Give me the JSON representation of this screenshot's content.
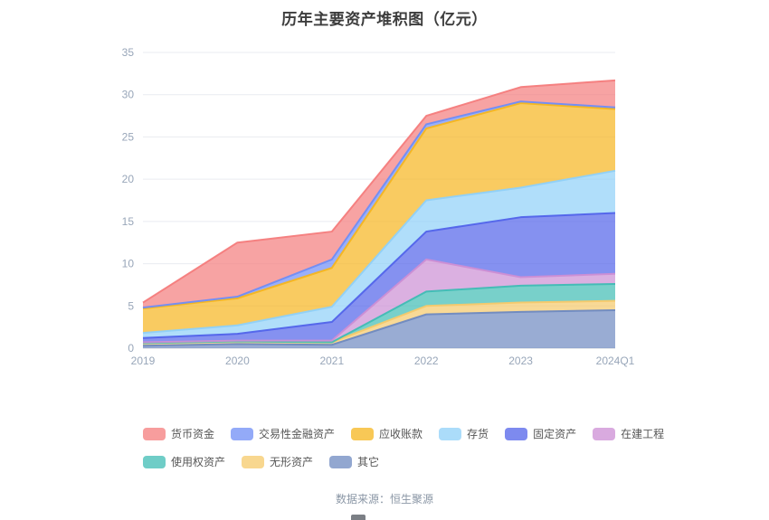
{
  "title": "历年主要资产堆积图（亿元）",
  "footer": {
    "source": "数据来源：恒生聚源"
  },
  "chart_data": {
    "type": "area",
    "stacked": true,
    "title": "历年主要资产堆积图（亿元）",
    "categories": [
      "2019",
      "2020",
      "2021",
      "2022",
      "2023",
      "2024Q1"
    ],
    "xlabel": "",
    "ylabel": "",
    "ylim": [
      0,
      35
    ],
    "yticks": [
      0,
      5,
      10,
      15,
      20,
      25,
      30,
      35
    ],
    "grid": true,
    "legend_position": "bottom",
    "stack_order": "last-series-at-bottom",
    "series": [
      {
        "name": "货币资金",
        "color": "#f47c7c",
        "values": [
          0.6,
          6.4,
          3.3,
          1.0,
          1.7,
          3.2
        ]
      },
      {
        "name": "交易性金融资产",
        "color": "#6f8df6",
        "values": [
          0.1,
          0.2,
          1.0,
          0.5,
          0.2,
          0.2
        ]
      },
      {
        "name": "应收账款",
        "color": "#f6b51e",
        "values": [
          2.9,
          3.2,
          4.6,
          8.5,
          10.0,
          7.3
        ]
      },
      {
        "name": "存货",
        "color": "#8fd0f8",
        "values": [
          0.6,
          1.0,
          1.8,
          3.7,
          3.5,
          5.0
        ]
      },
      {
        "name": "固定资产",
        "color": "#5163ea",
        "values": [
          0.5,
          0.8,
          2.2,
          3.3,
          7.1,
          7.2
        ]
      },
      {
        "name": "在建工程",
        "color": "#cc8ed4",
        "values": [
          0.1,
          0.1,
          0.2,
          3.8,
          1.0,
          1.2
        ]
      },
      {
        "name": "使用权资产",
        "color": "#3fbcb4",
        "values": [
          0.0,
          0.0,
          0.0,
          1.7,
          2.0,
          2.0
        ]
      },
      {
        "name": "无形资产",
        "color": "#f5c96a",
        "values": [
          0.3,
          0.3,
          0.3,
          1.0,
          1.1,
          1.1
        ]
      },
      {
        "name": "其它",
        "color": "#6e89c0",
        "values": [
          0.3,
          0.5,
          0.4,
          4.0,
          4.3,
          4.5
        ]
      }
    ],
    "totals": [
      5.4,
      12.5,
      13.8,
      27.5,
      30.9,
      31.7
    ],
    "axis_label_color": "#98a6b9",
    "grid_color": "#e9ebf0",
    "axis_line_color": "#ccd2da"
  }
}
